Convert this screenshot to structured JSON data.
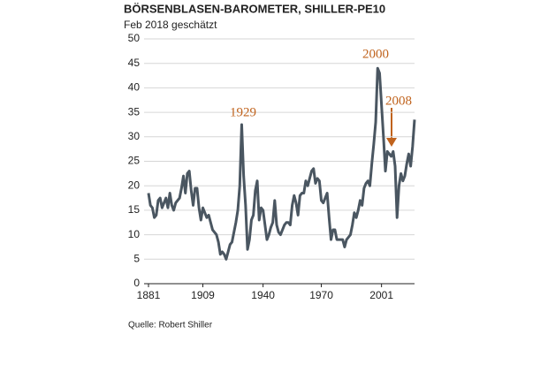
{
  "chart_data": {
    "type": "line",
    "title": "BÖRSENBLASEN-BAROMETER, SHILLER-PE10",
    "subtitle": "Feb 2018 geschätzt",
    "source": "Quelle: Robert Shiller",
    "annotations": [
      "1929",
      "2000",
      "2008"
    ],
    "x": [
      1881,
      1882,
      1883,
      1884,
      1885,
      1886,
      1887,
      1888,
      1889,
      1890,
      1891,
      1892,
      1893,
      1894,
      1895,
      1896,
      1897,
      1898,
      1899,
      1900,
      1901,
      1902,
      1903,
      1904,
      1905,
      1906,
      1907,
      1908,
      1909,
      1910,
      1911,
      1912,
      1913,
      1914,
      1915,
      1916,
      1917,
      1918,
      1919,
      1920,
      1921,
      1922,
      1923,
      1924,
      1925,
      1926,
      1927,
      1928,
      1929,
      1930,
      1931,
      1932,
      1933,
      1934,
      1935,
      1936,
      1937,
      1938,
      1939,
      1940,
      1941,
      1942,
      1943,
      1944,
      1945,
      1946,
      1947,
      1948,
      1949,
      1950,
      1951,
      1952,
      1953,
      1954,
      1955,
      1956,
      1957,
      1958,
      1959,
      1960,
      1961,
      1962,
      1963,
      1964,
      1965,
      1966,
      1967,
      1968,
      1969,
      1970,
      1971,
      1972,
      1973,
      1974,
      1975,
      1976,
      1977,
      1978,
      1979,
      1980,
      1981,
      1982,
      1983,
      1984,
      1985,
      1986,
      1987,
      1988,
      1989,
      1990,
      1991,
      1992,
      1993,
      1994,
      1995,
      1996,
      1997,
      1998,
      1999,
      2000,
      2001,
      2002,
      2003,
      2004,
      2005,
      2006,
      2007,
      2008,
      2009,
      2010,
      2011,
      2012,
      2013,
      2014,
      2015,
      2016,
      2017,
      2018
    ],
    "series": [
      {
        "name": "Shiller-PE10",
        "color": "#4a5661",
        "values": [
          18.5,
          16,
          15.5,
          13.5,
          14,
          17,
          17.5,
          15.5,
          16.5,
          17.5,
          15.5,
          18.5,
          16,
          15,
          16.5,
          17,
          17.5,
          19.5,
          22,
          18.5,
          22.5,
          23,
          19,
          16,
          19.5,
          19.5,
          15.5,
          13,
          15.5,
          14.5,
          13.5,
          14,
          12.5,
          11,
          10.5,
          10,
          8.5,
          6,
          6.5,
          6,
          5,
          6.5,
          8,
          8.5,
          10.5,
          12.5,
          15,
          20,
          32.5,
          22,
          16,
          7,
          9,
          13,
          14,
          19,
          21,
          13,
          15.5,
          15,
          12,
          9,
          10,
          11.5,
          12.5,
          17,
          12,
          10.5,
          10,
          11,
          12,
          12.5,
          12.5,
          12,
          16,
          18,
          16.5,
          14,
          18,
          18.5,
          18.5,
          21,
          20,
          21.5,
          23,
          23.5,
          20.5,
          21.5,
          21,
          17,
          16.5,
          17.5,
          18.5,
          13.5,
          9,
          11,
          11,
          9,
          9,
          9,
          9,
          7.5,
          9,
          9.5,
          10,
          12,
          14.5,
          13.5,
          15,
          17,
          16,
          19.5,
          20.5,
          21,
          20,
          24.5,
          28.5,
          33,
          44,
          43,
          36.5,
          30,
          23,
          27,
          26.5,
          26,
          27,
          24,
          13.5,
          20,
          22.5,
          21,
          22,
          24.5,
          26.5,
          24,
          28,
          33.5
        ]
      }
    ],
    "xlim": [
      1881,
      2018
    ],
    "xticks": [
      1881,
      1909,
      1940,
      1970,
      2001
    ],
    "ylim": [
      0,
      50
    ],
    "yticks": [
      0,
      5,
      10,
      15,
      20,
      25,
      30,
      35,
      40,
      45,
      50
    ],
    "grid": true
  }
}
